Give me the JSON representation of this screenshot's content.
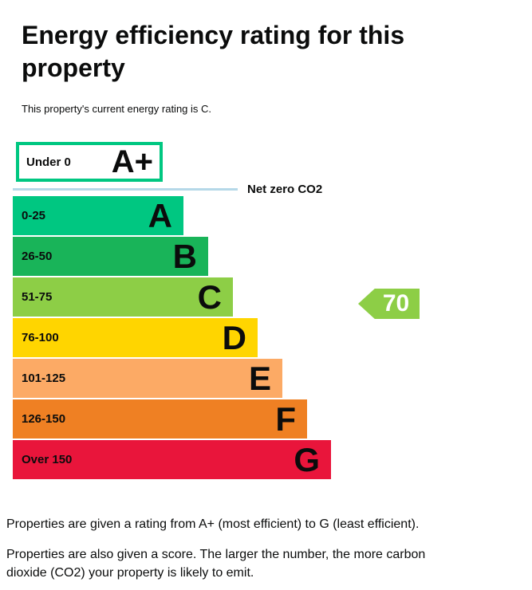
{
  "header": {
    "title": "Energy efficiency rating for this property",
    "subtitle": "This property's current energy rating is C."
  },
  "chart_data": {
    "type": "bar",
    "title": "Energy efficiency rating for this property",
    "categories": [
      "A+",
      "A",
      "B",
      "C",
      "D",
      "E",
      "F",
      "G"
    ],
    "bands": [
      {
        "label": "A+",
        "range": "Under 0",
        "color": "#ffffff",
        "border_color": "#00c781"
      },
      {
        "label": "A",
        "range": "0-25",
        "color": "#00c781"
      },
      {
        "label": "B",
        "range": "26-50",
        "color": "#19b459"
      },
      {
        "label": "C",
        "range": "51-75",
        "color": "#8dce46"
      },
      {
        "label": "D",
        "range": "76-100",
        "color": "#ffd500"
      },
      {
        "label": "E",
        "range": "101-125",
        "color": "#fcaa65"
      },
      {
        "label": "F",
        "range": "126-150",
        "color": "#ef8023"
      },
      {
        "label": "G",
        "range": "Over 150",
        "color": "#e9153b"
      }
    ],
    "net_zero_label": "Net zero CO2",
    "net_zero_line_color": "#b5d8e8",
    "current_rating": {
      "score": 70,
      "band": "C",
      "pointer_color": "#8dce46",
      "pointer_text_color": "#ffffff"
    }
  },
  "footer": {
    "rating_note": "Properties are given a rating from A+ (most efficient) to G (least efficient).",
    "score_note": "Properties are also given a score. The larger the number, the more carbon dioxide (CO2) your property is likely to emit."
  }
}
